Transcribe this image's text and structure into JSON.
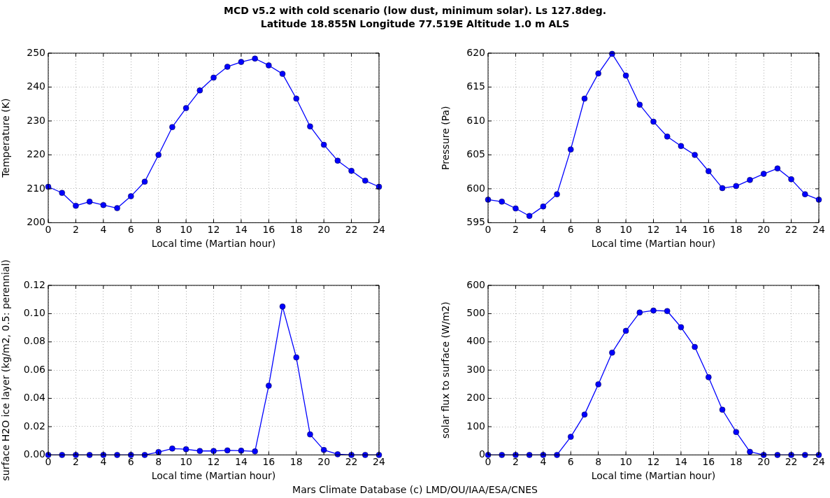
{
  "chart_data": [
    {
      "type": "line",
      "title": "MCD v5.2 with cold scenario (low dust, minimum solar). Ls 127.8deg.\nLatitude 18.855N Longitude 77.519E Altitude 1.0 m ALS",
      "xlabel": "Local time (Martian hour)",
      "ylabel": "Temperature (K)",
      "x": [
        0,
        1,
        2,
        3,
        4,
        5,
        6,
        7,
        8,
        9,
        10,
        11,
        12,
        13,
        14,
        15,
        16,
        17,
        18,
        19,
        20,
        21,
        22,
        23,
        24
      ],
      "series": [
        {
          "color": "#0000ff",
          "values": [
            210.6,
            208.8,
            205,
            206.2,
            205.2,
            204.3,
            207.8,
            212.1,
            220,
            228.2,
            233.8,
            239,
            242.8,
            246,
            247.4,
            248.4,
            246.4,
            243.9,
            236.6,
            228.4,
            223,
            218.3,
            215.3,
            212.4,
            210.6
          ]
        }
      ],
      "xlim": [
        0,
        24
      ],
      "xticks": [
        0,
        2,
        4,
        6,
        8,
        10,
        12,
        14,
        16,
        18,
        20,
        22,
        24
      ],
      "ylim": [
        200,
        250
      ],
      "yticks": [
        200,
        210,
        220,
        230,
        240,
        250
      ],
      "grid": true,
      "marker": "circle",
      "line_style": "solid"
    },
    {
      "type": "line",
      "xlabel": "Local time (Martian hour)",
      "ylabel": "Pressure (Pa)",
      "x": [
        0,
        1,
        2,
        3,
        4,
        5,
        6,
        7,
        8,
        9,
        10,
        11,
        12,
        13,
        14,
        15,
        16,
        17,
        18,
        19,
        20,
        21,
        22,
        23,
        24
      ],
      "series": [
        {
          "color": "#0000ff",
          "values": [
            598.4,
            598.1,
            597.1,
            596,
            597.4,
            599.2,
            605.8,
            613.3,
            617,
            619.9,
            616.7,
            612.4,
            609.9,
            607.7,
            606.3,
            605,
            602.6,
            600.1,
            600.4,
            601.3,
            602.2,
            603,
            601.4,
            599.2,
            598.4
          ]
        }
      ],
      "xlim": [
        0,
        24
      ],
      "xticks": [
        0,
        2,
        4,
        6,
        8,
        10,
        12,
        14,
        16,
        18,
        20,
        22,
        24
      ],
      "ylim": [
        595,
        620
      ],
      "yticks": [
        595,
        600,
        605,
        610,
        615,
        620
      ],
      "grid": true,
      "marker": "circle",
      "line_style": "solid"
    },
    {
      "type": "line",
      "xlabel": "Local time (Martian hour)",
      "ylabel": "surface H2O ice layer (kg/m2, 0.5: perennial)",
      "x": [
        0,
        1,
        2,
        3,
        4,
        5,
        6,
        7,
        8,
        9,
        10,
        11,
        12,
        13,
        14,
        15,
        16,
        17,
        18,
        19,
        20,
        21,
        22,
        23,
        24
      ],
      "series": [
        {
          "color": "#0000ff",
          "values": [
            0,
            0,
            0,
            0,
            0,
            0,
            0,
            0,
            0.002,
            0.0045,
            0.004,
            0.0028,
            0.0028,
            0.0032,
            0.003,
            0.0025,
            0.049,
            0.105,
            0.069,
            0.0145,
            0.0035,
            0.0005,
            0,
            0,
            0
          ]
        }
      ],
      "xlim": [
        0,
        24
      ],
      "xticks": [
        0,
        2,
        4,
        6,
        8,
        10,
        12,
        14,
        16,
        18,
        20,
        22,
        24
      ],
      "ylim": [
        0,
        0.12
      ],
      "yticks": [
        {
          "value": 0,
          "label": "0.00"
        },
        {
          "value": 0.02,
          "label": "0.02"
        },
        {
          "value": 0.04,
          "label": "0.04"
        },
        {
          "value": 0.06,
          "label": "0.06"
        },
        {
          "value": 0.08,
          "label": "0.08"
        },
        {
          "value": 0.1,
          "label": "0.10"
        },
        {
          "value": 0.12,
          "label": "0.12"
        }
      ],
      "grid": true,
      "marker": "circle",
      "line_style": "solid"
    },
    {
      "type": "line",
      "xlabel": "Local time (Martian hour)",
      "ylabel": "solar flux to surface (W/m2)",
      "annotations": [
        "Mars Climate Database (c) LMD/OU/IAA/ESA/CNES"
      ],
      "x": [
        0,
        1,
        2,
        3,
        4,
        5,
        6,
        7,
        8,
        9,
        10,
        11,
        12,
        13,
        14,
        15,
        16,
        17,
        18,
        19,
        20,
        21,
        22,
        23,
        24
      ],
      "series": [
        {
          "color": "#0000ff",
          "values": [
            0,
            0,
            0,
            0,
            0,
            0,
            64,
            143,
            250,
            362,
            439,
            504,
            511,
            509,
            452,
            382,
            275,
            160,
            81,
            11,
            0,
            0,
            0,
            0,
            0
          ]
        }
      ],
      "xlim": [
        0,
        24
      ],
      "xticks": [
        0,
        2,
        4,
        6,
        8,
        10,
        12,
        14,
        16,
        18,
        20,
        22,
        24
      ],
      "ylim": [
        0,
        600
      ],
      "yticks": [
        0,
        100,
        200,
        300,
        400,
        500,
        600
      ],
      "grid": true,
      "marker": "circle",
      "line_style": "solid"
    }
  ]
}
